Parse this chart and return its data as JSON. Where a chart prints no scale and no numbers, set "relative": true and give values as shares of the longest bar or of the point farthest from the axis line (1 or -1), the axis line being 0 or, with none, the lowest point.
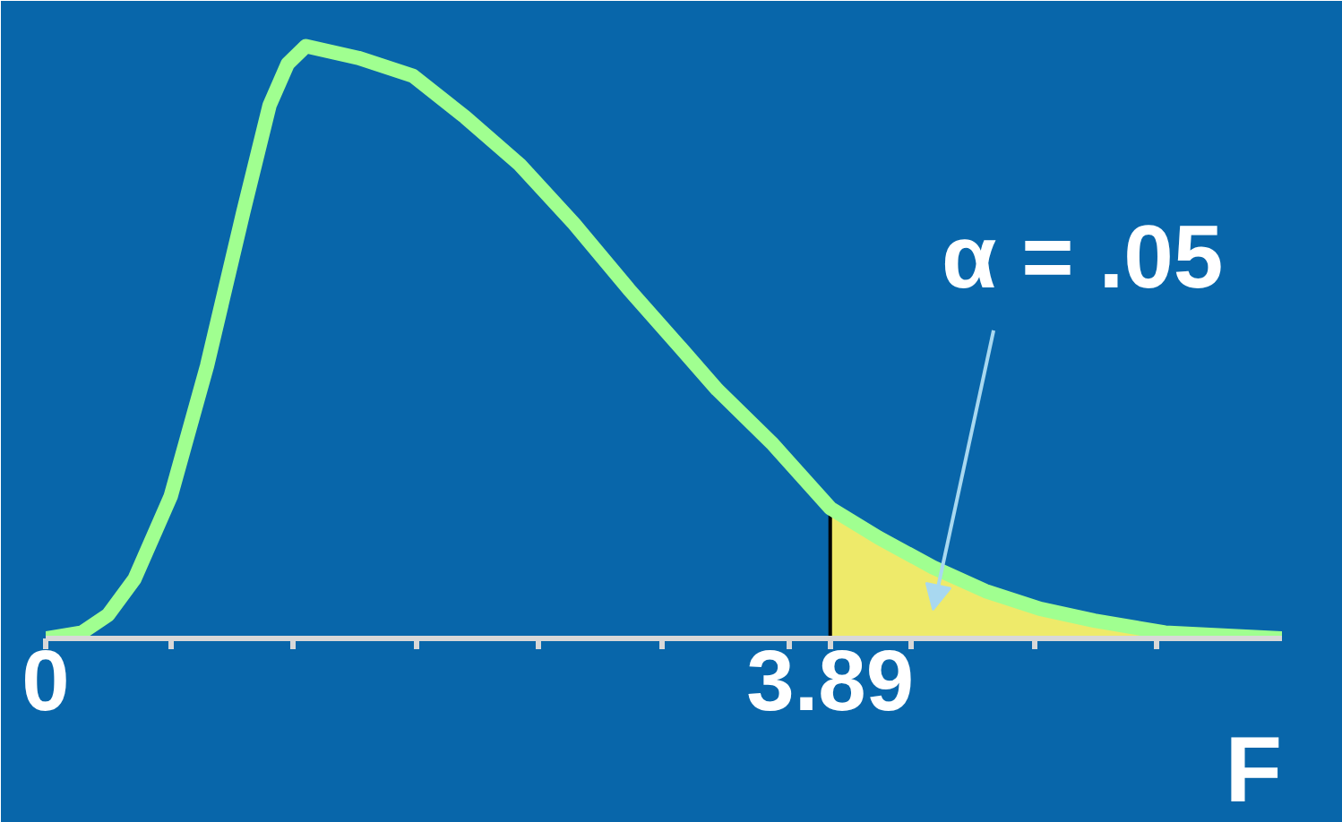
{
  "chart_data": {
    "type": "line",
    "relative": true,
    "xlabel": "F",
    "xlim": [
      0,
      6.13
    ],
    "xticks": [
      0,
      {
        "value": 0.62,
        "label": null
      },
      {
        "value": 1.23,
        "label": null
      },
      {
        "value": 1.84,
        "label": null
      },
      {
        "value": 2.44,
        "label": null
      },
      {
        "value": 3.06,
        "label": null
      },
      {
        "value": 3.69,
        "label": null
      },
      3.89,
      {
        "value": 4.29,
        "label": null
      },
      {
        "value": 4.9,
        "label": null
      },
      {
        "value": 5.51,
        "label": null
      }
    ],
    "series": [
      {
        "color": "#a0ff90",
        "x": [
          0,
          0.18,
          0.31,
          0.44,
          0.62,
          0.8,
          0.98,
          1.11,
          1.2,
          1.29,
          1.55,
          1.82,
          2.08,
          2.35,
          2.62,
          2.89,
          3.15,
          3.33,
          3.6,
          3.89,
          4.13,
          4.4,
          4.66,
          4.93,
          5.2,
          5.55,
          6.13
        ],
        "values": [
          0,
          0.01,
          0.04,
          0.1,
          0.24,
          0.46,
          0.72,
          0.9,
          0.97,
          1.0,
          0.98,
          0.95,
          0.88,
          0.8,
          0.7,
          0.59,
          0.49,
          0.42,
          0.33,
          0.22,
          0.17,
          0.12,
          0.08,
          0.05,
          0.03,
          0.01,
          0
        ]
      },
      {
        "type": "area",
        "color": "#eeea6a",
        "x": [
          3.89,
          4.13,
          4.4,
          4.66,
          4.93,
          5.2,
          5.55
        ],
        "values": [
          0.22,
          0.17,
          0.12,
          0.08,
          0.05,
          0.03,
          0.01
        ]
      }
    ],
    "annotations": [
      "α = .05"
    ],
    "grid": false
  }
}
